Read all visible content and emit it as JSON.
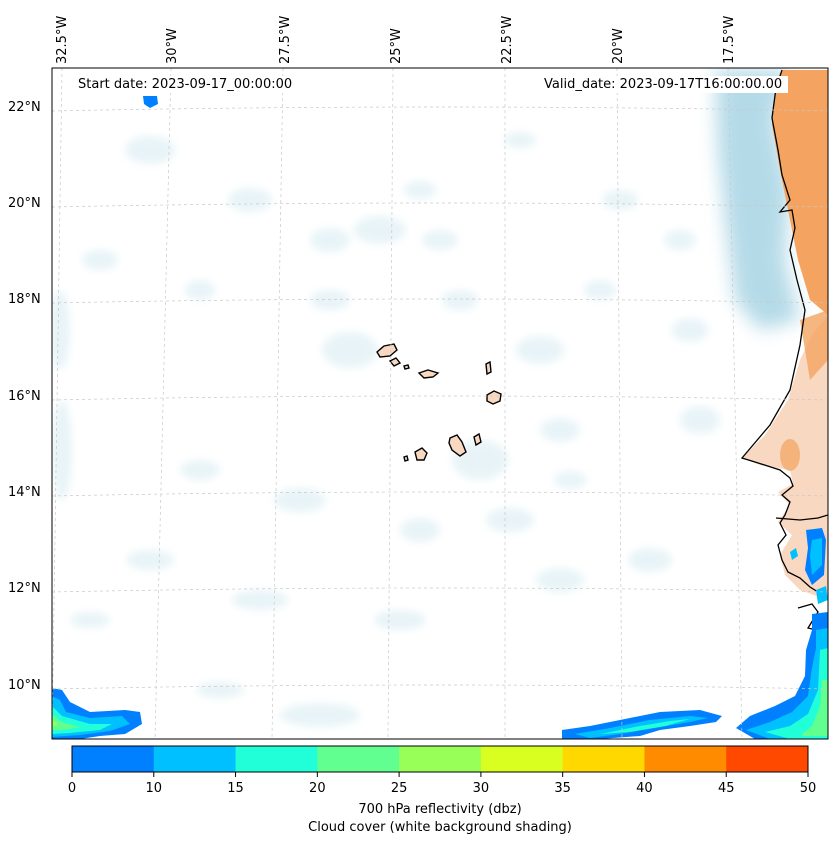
{
  "map": {
    "start_date": "Start date: 2023-09-17_00:00:00",
    "valid_date": "Valid_date: 2023-09-17T16:00:00.00",
    "lon_labels": [
      "32.5°W",
      "30°W",
      "27.5°W",
      "25°W",
      "22.5°W",
      "20°W",
      "17.5°W"
    ],
    "lat_labels": [
      "22°N",
      "20°N",
      "18°N",
      "16°N",
      "14°N",
      "12°N",
      "10°N"
    ],
    "colors": {
      "ocean_cloud": "#d6ebf2",
      "land": "#f4a460",
      "land_light": "#f8d8c0",
      "coastline": "#000000",
      "grid": "#c8c8c8"
    }
  },
  "colorbar": {
    "ticks": [
      "0",
      "10",
      "15",
      "20",
      "25",
      "30",
      "35",
      "40",
      "45",
      "50"
    ],
    "colors": [
      "#0080ff",
      "#00c0ff",
      "#20ffd8",
      "#60ff90",
      "#98ff58",
      "#d8ff20",
      "#ffd800",
      "#ff8c00",
      "#ff4800"
    ],
    "label_line1": "700 hPa reflectivity (dbz)",
    "label_line2": "Cloud cover (white background shading)"
  }
}
